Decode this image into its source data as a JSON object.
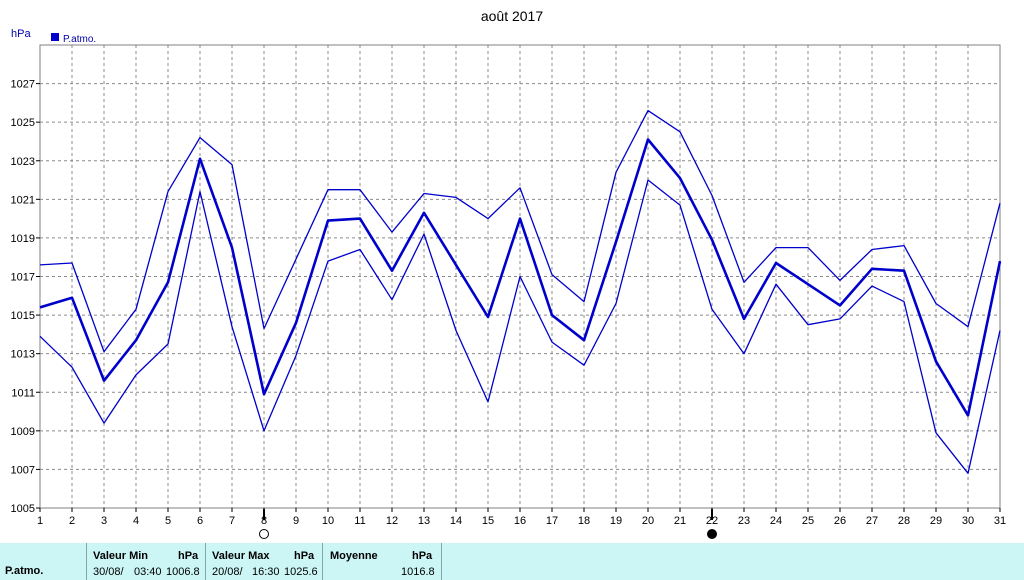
{
  "chart_data": {
    "type": "line",
    "title": "août 2017",
    "ylabel": "hPa",
    "legend": "P.atmo.",
    "legend_position": "top-left",
    "grid": true,
    "ylim": [
      1005,
      1029
    ],
    "yticks": [
      1005,
      1007,
      1009,
      1011,
      1013,
      1015,
      1017,
      1019,
      1021,
      1023,
      1025,
      1027
    ],
    "x": [
      1,
      2,
      3,
      4,
      5,
      6,
      7,
      8,
      9,
      10,
      11,
      12,
      13,
      14,
      15,
      16,
      17,
      18,
      19,
      20,
      21,
      22,
      23,
      24,
      25,
      26,
      27,
      28,
      29,
      30,
      31
    ],
    "series": [
      {
        "values": [
          1017.6,
          1017.7,
          1013.1,
          1015.3,
          1021.4,
          1024.2,
          1022.8,
          1014.3,
          1017.9,
          1021.5,
          1021.5,
          1019.3,
          1021.3,
          1021.1,
          1020.0,
          1021.6,
          1017.1,
          1015.7,
          1022.4,
          1025.6,
          1024.5,
          1021.2,
          1016.7,
          1018.5,
          1018.5,
          1016.8,
          1018.4,
          1018.6,
          1015.6,
          1014.4,
          1020.8
        ],
        "color": "#0000cc",
        "width": 1.3
      },
      {
        "values": [
          1015.4,
          1015.9,
          1011.6,
          1013.7,
          1016.7,
          1023.1,
          1018.5,
          1010.9,
          1014.6,
          1019.9,
          1020.0,
          1017.3,
          1020.3,
          1017.6,
          1014.9,
          1020.0,
          1015.0,
          1013.7,
          1018.8,
          1024.1,
          1022.1,
          1018.9,
          1014.8,
          1017.7,
          1016.6,
          1015.5,
          1017.4,
          1017.3,
          1012.6,
          1009.8,
          1017.8
        ],
        "color": "#0000cc",
        "width": 2.6
      },
      {
        "values": [
          1013.9,
          1012.3,
          1009.4,
          1011.9,
          1013.5,
          1021.4,
          1014.4,
          1009.0,
          1012.9,
          1017.8,
          1018.4,
          1015.8,
          1019.2,
          1014.2,
          1010.5,
          1017.0,
          1013.6,
          1012.4,
          1015.6,
          1022.0,
          1020.7,
          1015.3,
          1013.0,
          1016.6,
          1014.5,
          1014.8,
          1016.5,
          1015.7,
          1008.9,
          1006.8,
          1014.2
        ],
        "color": "#0000cc",
        "width": 1.3
      }
    ],
    "moon_markers": [
      {
        "x": 8,
        "symbol": "full-moon-icon"
      },
      {
        "x": 22,
        "symbol": "new-moon-icon"
      }
    ]
  },
  "footer": {
    "series_label": "P.atmo.",
    "min": {
      "header": "Valeur Min",
      "unit": "hPa",
      "date": "30/08/",
      "time": "03:40",
      "value": "1006.8"
    },
    "max": {
      "header": "Valeur Max",
      "unit": "hPa",
      "date": "20/08/",
      "time": "16:30",
      "value": "1025.6"
    },
    "avg": {
      "header": "Moyenne",
      "unit": "hPa",
      "value": "1016.8"
    }
  }
}
